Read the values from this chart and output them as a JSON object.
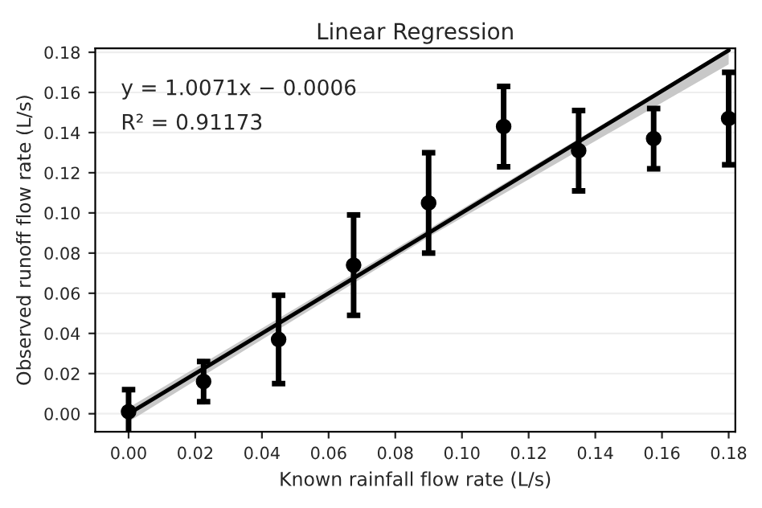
{
  "chart_data": {
    "type": "scatter",
    "title": "Linear Regression",
    "xlabel": "Known rainfall flow rate (L/s)",
    "ylabel": "Observed runoff flow rate (L/s)",
    "annotations": [
      "y = 1.0071x − 0.0006",
      "R² = 0.91173"
    ],
    "series": [
      {
        "marker": "circle",
        "color": "#000000",
        "x": [
          0,
          0.0225,
          0.045,
          0.0675,
          0.09,
          0.1125,
          0.135,
          0.1575,
          0.18
        ],
        "values": [
          0.001,
          0.016,
          0.037,
          0.074,
          0.105,
          0.143,
          0.131,
          0.137,
          0.147
        ],
        "errors": [
          0.011,
          0.01,
          0.022,
          0.025,
          0.025,
          0.02,
          0.02,
          0.015,
          0.023
        ]
      },
      {
        "type": "line",
        "color": "#000000",
        "x": [
          0,
          0.09,
          0.18
        ],
        "values": [
          0.0,
          0.09,
          0.181
        ],
        "lower": [
          -0.004,
          0.088,
          0.174
        ],
        "upper": [
          0.003,
          0.092,
          0.182
        ]
      }
    ],
    "xlim": [
      -0.01,
      0.182
    ],
    "ylim": [
      -0.009,
      0.182
    ],
    "xticks": [
      {
        "value": 0,
        "label": "0.00"
      },
      {
        "value": 0.02,
        "label": "0.02"
      },
      {
        "value": 0.04,
        "label": "0.04"
      },
      {
        "value": 0.06,
        "label": "0.06"
      },
      {
        "value": 0.08,
        "label": "0.08"
      },
      {
        "value": 0.1,
        "label": "0.10"
      },
      {
        "value": 0.12,
        "label": "0.12"
      },
      {
        "value": 0.14,
        "label": "0.14"
      },
      {
        "value": 0.16,
        "label": "0.16"
      },
      {
        "value": 0.18,
        "label": "0.18"
      }
    ],
    "yticks": [
      {
        "value": 0,
        "label": "0.00"
      },
      {
        "value": 0.02,
        "label": "0.02"
      },
      {
        "value": 0.04,
        "label": "0.04"
      },
      {
        "value": 0.06,
        "label": "0.06"
      },
      {
        "value": 0.08,
        "label": "0.08"
      },
      {
        "value": 0.1,
        "label": "0.10"
      },
      {
        "value": 0.12,
        "label": "0.12"
      },
      {
        "value": 0.14,
        "label": "0.14"
      },
      {
        "value": 0.16,
        "label": "0.16"
      },
      {
        "value": 0.18,
        "label": "0.18"
      }
    ],
    "grid": "y",
    "line_style": "solid",
    "legend": false
  }
}
